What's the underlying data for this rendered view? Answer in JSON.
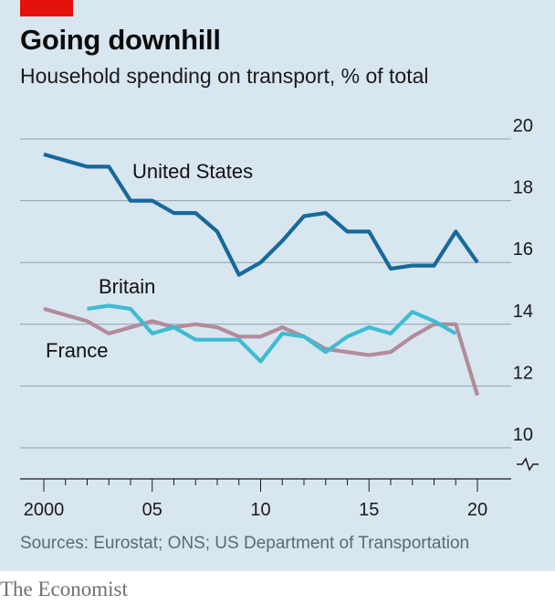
{
  "title": "Going downhill",
  "subtitle": "Household spending on transport, % of total",
  "source": "Sources: Eurostat; ONS; US Department of Transportation",
  "brand": "The Economist",
  "colors": {
    "background": "#d8e6f0",
    "united_states": "#17699b",
    "britain": "#3ebcd2",
    "france": "#b38b9a",
    "accent": "#e3120b"
  },
  "chart_data": {
    "type": "line",
    "title": "Going downhill",
    "subtitle": "Household spending on transport, % of total",
    "ylim": [
      10,
      20
    ],
    "y_ticks": [
      20,
      18,
      16,
      14,
      12,
      10
    ],
    "y_axis_break": true,
    "x_ticks": [
      2000,
      2005,
      2010,
      2015,
      2020
    ],
    "x_tick_labels": [
      "2000",
      "05",
      "10",
      "15",
      "20"
    ],
    "y_axis_side": "right",
    "grid": true,
    "series": [
      {
        "name": "United States",
        "color": "#17699b",
        "x": [
          2000,
          2001,
          2002,
          2003,
          2004,
          2005,
          2006,
          2007,
          2008,
          2009,
          2010,
          2011,
          2012,
          2013,
          2014,
          2015,
          2016,
          2017,
          2018,
          2019,
          2020
        ],
        "values": [
          19.5,
          19.3,
          19.1,
          19.1,
          18.0,
          18.0,
          17.6,
          17.6,
          17.0,
          15.6,
          16.0,
          16.7,
          17.5,
          17.6,
          17.0,
          17.0,
          15.8,
          15.9,
          15.9,
          17.0,
          16.0
        ]
      },
      {
        "name": "Britain",
        "color": "#3ebcd2",
        "x": [
          2002,
          2003,
          2004,
          2005,
          2006,
          2007,
          2008,
          2009,
          2010,
          2011,
          2012,
          2013,
          2014,
          2015,
          2016,
          2017,
          2018,
          2019
        ],
        "values": [
          14.5,
          14.6,
          14.5,
          13.7,
          13.9,
          13.5,
          13.5,
          13.5,
          12.8,
          13.7,
          13.6,
          13.1,
          13.6,
          13.9,
          13.7,
          14.4,
          14.1,
          13.7
        ]
      },
      {
        "name": "France",
        "color": "#b38b9a",
        "x": [
          2000,
          2001,
          2002,
          2003,
          2004,
          2005,
          2006,
          2007,
          2008,
          2009,
          2010,
          2011,
          2012,
          2013,
          2014,
          2015,
          2016,
          2017,
          2018,
          2019,
          2020
        ],
        "values": [
          14.5,
          14.3,
          14.1,
          13.7,
          13.9,
          14.1,
          13.9,
          14.0,
          13.9,
          13.6,
          13.6,
          13.9,
          13.6,
          13.2,
          13.1,
          13.0,
          13.1,
          13.6,
          14.0,
          14.0,
          11.7
        ]
      }
    ]
  }
}
